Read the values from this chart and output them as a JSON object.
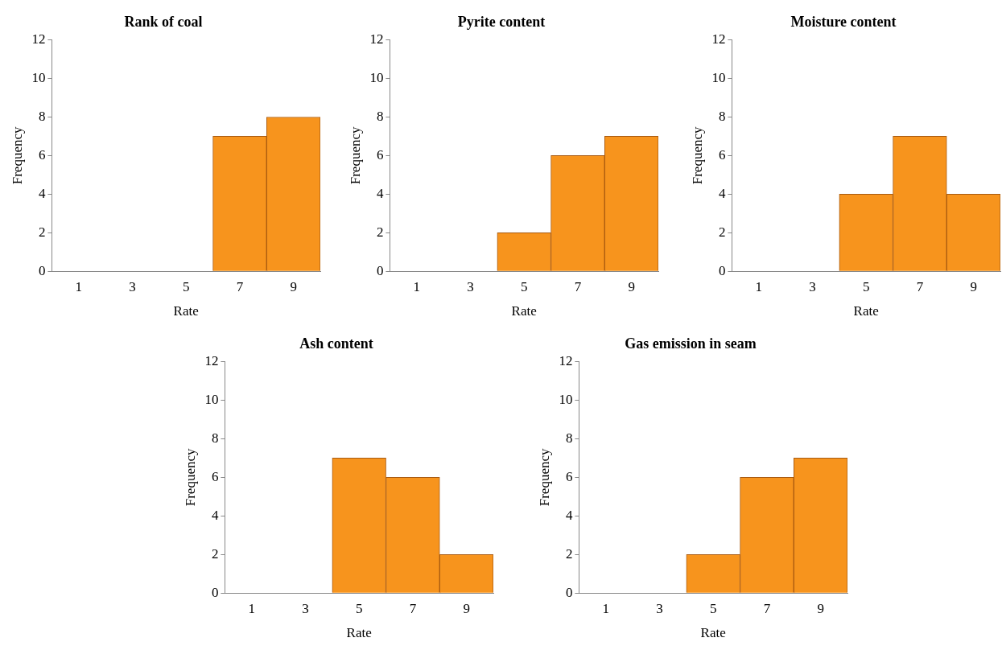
{
  "chart_data": [
    {
      "type": "bar",
      "title": "Rank of coal",
      "xlabel": "Rate",
      "ylabel": "Frequency",
      "categories": [
        "1",
        "3",
        "5",
        "7",
        "9"
      ],
      "values": [
        0,
        0,
        0,
        7,
        8
      ],
      "color": "#f7941d",
      "ylim": [
        0,
        12
      ],
      "yticks": [
        0,
        2,
        4,
        6,
        8,
        10,
        12
      ],
      "grid": false,
      "legend": false
    },
    {
      "type": "bar",
      "title": "Pyrite content",
      "xlabel": "Rate",
      "ylabel": "Frequency",
      "categories": [
        "1",
        "3",
        "5",
        "7",
        "9"
      ],
      "values": [
        0,
        0,
        2,
        6,
        7
      ],
      "color": "#f7941d",
      "ylim": [
        0,
        12
      ],
      "yticks": [
        0,
        2,
        4,
        6,
        8,
        10,
        12
      ],
      "grid": false,
      "legend": false
    },
    {
      "type": "bar",
      "title": "Moisture content",
      "xlabel": "Rate",
      "ylabel": "Frequency",
      "categories": [
        "1",
        "3",
        "5",
        "7",
        "9"
      ],
      "values": [
        0,
        0,
        4,
        7,
        4
      ],
      "color": "#f7941d",
      "ylim": [
        0,
        12
      ],
      "yticks": [
        0,
        2,
        4,
        6,
        8,
        10,
        12
      ],
      "grid": false,
      "legend": false
    },
    {
      "type": "bar",
      "title": "Ash content",
      "xlabel": "Rate",
      "ylabel": "Frequency",
      "categories": [
        "1",
        "3",
        "5",
        "7",
        "9"
      ],
      "values": [
        0,
        0,
        7,
        6,
        2
      ],
      "color": "#f7941d",
      "ylim": [
        0,
        12
      ],
      "yticks": [
        0,
        2,
        4,
        6,
        8,
        10,
        12
      ],
      "grid": false,
      "legend": false
    },
    {
      "type": "bar",
      "title": "Gas emission in seam",
      "xlabel": "Rate",
      "ylabel": "Frequency",
      "categories": [
        "1",
        "3",
        "5",
        "7",
        "9"
      ],
      "values": [
        0,
        0,
        2,
        6,
        7
      ],
      "color": "#f7941d",
      "ylim": [
        0,
        12
      ],
      "yticks": [
        0,
        2,
        4,
        6,
        8,
        10,
        12
      ],
      "grid": false,
      "legend": false
    }
  ]
}
